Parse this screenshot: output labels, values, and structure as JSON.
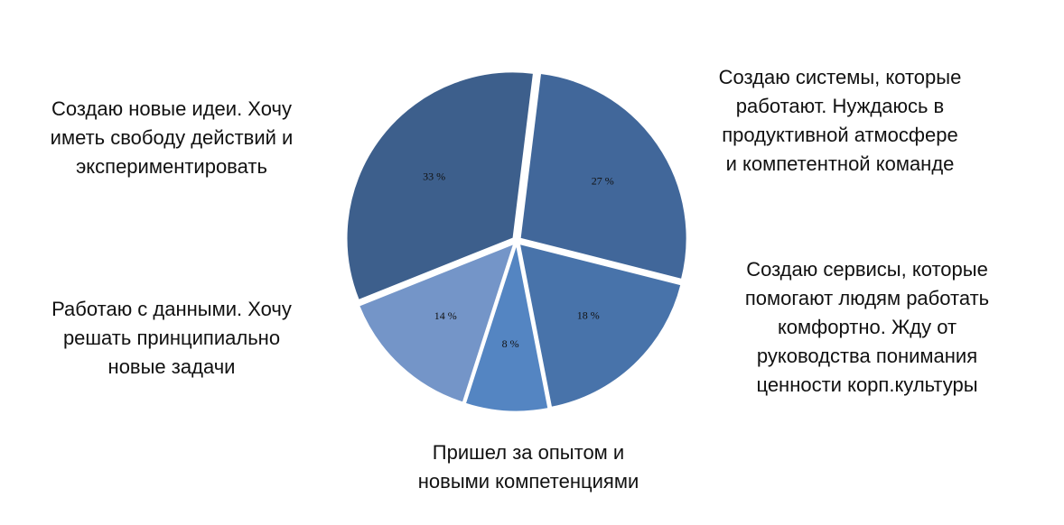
{
  "chart_data": {
    "type": "pie",
    "categories": [
      "Создаю системы, которые\nработают. Нуждаюсь в\nпродуктивной атмосфере\nи компетентной команде",
      "Создаю сервисы, которые\nпомогают людям работать\nкомфортно. Жду от\nруководства понимания\nценности корп.культуры",
      "Пришел за опытом и\nновыми компетенциями",
      "Работаю с данными. Хочу\nрешать принципиально\nновые задачи",
      "Создаю новые идеи. Хочу\nиметь свободу действий и\nэкспериментировать"
    ],
    "values": [
      27,
      18,
      8,
      14,
      33
    ],
    "value_labels": [
      "27 %",
      "18 %",
      "8 %",
      "14 %",
      "33 %"
    ],
    "colors": [
      "#41679a",
      "#4873aa",
      "#5485c2",
      "#7495c8",
      "#3d5f8c"
    ],
    "start_angle_deg": 7,
    "direction": "clockwise",
    "exploded": true
  }
}
